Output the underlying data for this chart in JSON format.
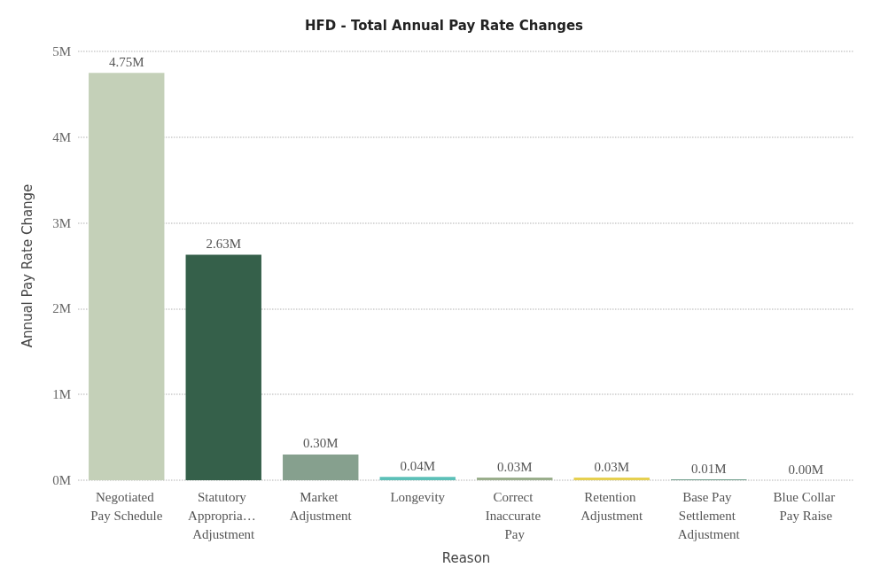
{
  "chart_data": {
    "type": "bar",
    "title": "HFD - Total Annual Pay Rate Changes",
    "xlabel": "Reason",
    "ylabel": "Annual Pay Rate Change",
    "categories": [
      "Negotiated Pay Schedule",
      "Statutory Appropria… Adjustment",
      "Market Adjustment",
      "Longevity",
      "Correct Inaccurate Pay",
      "Retention Adjustment",
      "Base Pay Settlement Adjustment",
      "Blue Collar Pay Raise"
    ],
    "values": [
      4.75,
      2.63,
      0.3,
      0.04,
      0.03,
      0.03,
      0.01,
      0.0
    ],
    "value_labels": [
      "4.75M",
      "2.63M",
      "0.30M",
      "0.04M",
      "0.03M",
      "0.03M",
      "0.01M",
      "0.00M"
    ],
    "colors": [
      "#c4d0b8",
      "#35604a",
      "#86a08e",
      "#5cc0b8",
      "#9aae8c",
      "#e6d050",
      "#6a9a88",
      "#d8c060"
    ],
    "ylim": [
      0,
      5
    ],
    "yticks": [
      {
        "value": 0,
        "label": "0M"
      },
      {
        "value": 1,
        "label": "1M"
      },
      {
        "value": 2,
        "label": "2M"
      },
      {
        "value": 3,
        "label": "3M"
      },
      {
        "value": 4,
        "label": "4M"
      },
      {
        "value": 5,
        "label": "5M"
      }
    ],
    "grid": "y"
  }
}
